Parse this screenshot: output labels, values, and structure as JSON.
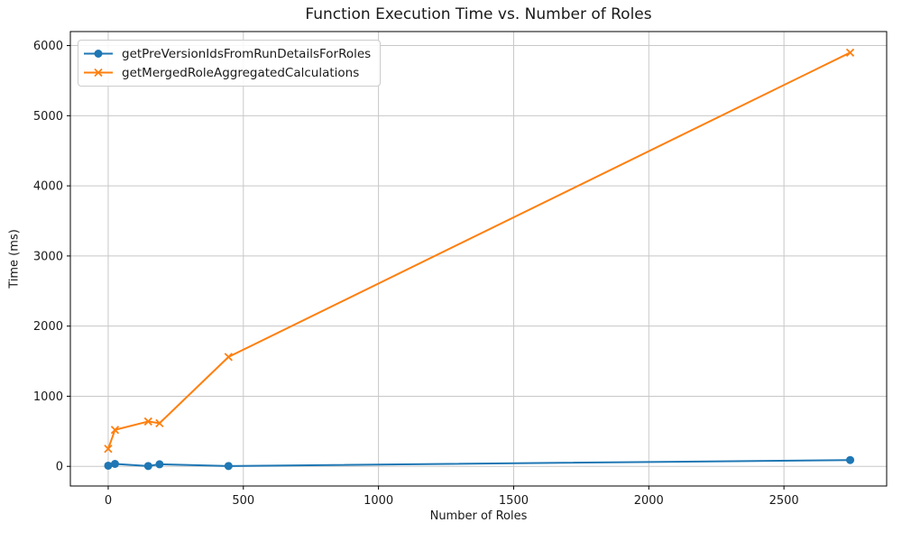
{
  "chart_data": {
    "type": "line",
    "title": "Function Execution Time vs. Number of Roles",
    "xlabel": "Number of Roles",
    "ylabel": "Time (ms)",
    "xlim": [
      -140,
      2880
    ],
    "ylim": [
      -280,
      6200
    ],
    "xticks": [
      0,
      500,
      1000,
      1500,
      2000,
      2500
    ],
    "yticks": [
      0,
      1000,
      2000,
      3000,
      4000,
      5000,
      6000
    ],
    "grid": true,
    "grid_color": "#c8c8c8",
    "spine_color": "#000000",
    "text_color": "#1a1a1a",
    "legend_position": "upper left",
    "series": [
      {
        "name": "getPreVersionIdsFromRunDetailsForRoles",
        "color": "#1f77b4",
        "marker": "circle",
        "x": [
          0,
          25,
          148,
          190,
          445,
          2745
        ],
        "y": [
          10,
          35,
          5,
          30,
          5,
          90
        ]
      },
      {
        "name": "getMergedRoleAggregatedCalculations",
        "color": "#ff7f0e",
        "marker": "x",
        "x": [
          0,
          25,
          148,
          190,
          445,
          2745
        ],
        "y": [
          250,
          520,
          640,
          615,
          1560,
          5900
        ]
      }
    ]
  }
}
